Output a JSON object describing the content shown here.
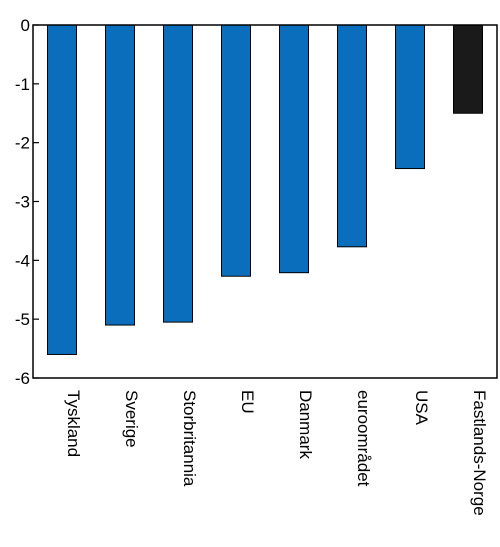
{
  "chart_data": {
    "type": "bar",
    "title": "",
    "xlabel": "",
    "ylabel": "",
    "ylim": [
      -6,
      0
    ],
    "yticks": [
      0,
      -1,
      -2,
      -3,
      -4,
      -5,
      -6
    ],
    "ytick_labels": [
      "0",
      "-1",
      "-2",
      "-3",
      "-4",
      "-5",
      "-6"
    ],
    "grid": false,
    "categories": [
      "Tyskland",
      "Sverige",
      "Storbritannia",
      "EU",
      "Danmark",
      "euroområdet",
      "USA",
      "Fastlands-Norge"
    ],
    "values": [
      -5.6,
      -5.1,
      -5.05,
      -4.27,
      -4.21,
      -3.77,
      -2.44,
      -1.5
    ],
    "colors": [
      "#0a6ebd",
      "#0a6ebd",
      "#0a6ebd",
      "#0a6ebd",
      "#0a6ebd",
      "#0a6ebd",
      "#0a6ebd",
      "#1a1a1a"
    ]
  }
}
